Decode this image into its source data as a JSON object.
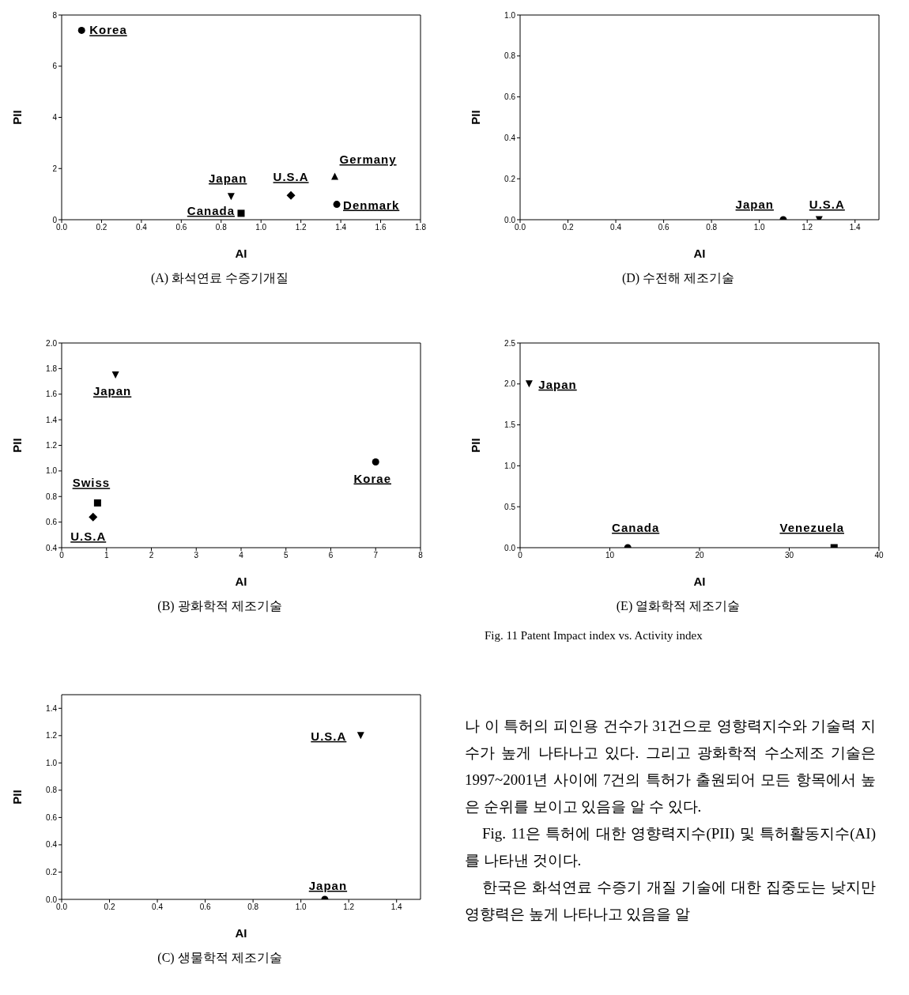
{
  "chart_data": [
    {
      "type": "scatter",
      "title": "(A) 화석연료 수증기개질",
      "xlabel": "AI",
      "ylabel": "PII",
      "xlim": [
        0,
        1.8
      ],
      "xticks": [
        {
          "value": 0,
          "label": "0.0"
        },
        {
          "value": 0.2,
          "label": "0.2"
        },
        {
          "value": 0.4,
          "label": "0.4"
        },
        {
          "value": 0.6,
          "label": "0.6"
        },
        {
          "value": 0.8,
          "label": "0.8"
        },
        {
          "value": 1,
          "label": "1.0"
        },
        {
          "value": 1.2,
          "label": "1.2"
        },
        {
          "value": 1.4,
          "label": "1.4"
        },
        {
          "value": 1.6,
          "label": "1.6"
        },
        {
          "value": 1.8,
          "label": "1.8"
        }
      ],
      "ylim": [
        0,
        8
      ],
      "yticks": [
        0,
        2,
        4,
        6,
        8
      ],
      "series": [
        {
          "name": "Korea",
          "color": "#000000",
          "marker": "circle",
          "x": [
            0.1
          ],
          "values": [
            7.4
          ]
        },
        {
          "name": "Japan",
          "color": "#000000",
          "marker": "triangle-down",
          "x": [
            0.85
          ],
          "values": [
            0.9
          ]
        },
        {
          "name": "Canada",
          "color": "#000000",
          "marker": "square",
          "x": [
            0.9
          ],
          "values": [
            0.25
          ]
        },
        {
          "name": "U.S.A",
          "color": "#000000",
          "marker": "diamond",
          "x": [
            1.15
          ],
          "values": [
            0.95
          ]
        },
        {
          "name": "Germany",
          "color": "#000000",
          "marker": "triangle",
          "x": [
            1.37
          ],
          "values": [
            1.7
          ]
        },
        {
          "name": "Denmark",
          "color": "#000000",
          "marker": "circle",
          "x": [
            1.38
          ],
          "values": [
            0.6
          ]
        }
      ]
    },
    {
      "type": "scatter",
      "title": "(D) 수전해 제조기술",
      "xlabel": "AI",
      "ylabel": "PII",
      "xlim": [
        0,
        1.5
      ],
      "xticks": [
        {
          "value": 0,
          "label": "0.0"
        },
        {
          "value": 0.2,
          "label": "0.2"
        },
        {
          "value": 0.4,
          "label": "0.4"
        },
        {
          "value": 0.6,
          "label": "0.6"
        },
        {
          "value": 0.8,
          "label": "0.8"
        },
        {
          "value": 1,
          "label": "1.0"
        },
        {
          "value": 1.2,
          "label": "1.2"
        },
        {
          "value": 1.4,
          "label": "1.4"
        }
      ],
      "ylim": [
        0,
        1
      ],
      "yticks": [
        {
          "value": 0,
          "label": "0.0"
        },
        {
          "value": 0.2,
          "label": "0.2"
        },
        {
          "value": 0.4,
          "label": "0.4"
        },
        {
          "value": 0.6,
          "label": "0.6"
        },
        {
          "value": 0.8,
          "label": "0.8"
        },
        {
          "value": 1,
          "label": "1.0"
        }
      ],
      "series": [
        {
          "name": "Japan",
          "color": "#000000",
          "marker": "circle",
          "x": [
            1.1
          ],
          "values": [
            0
          ]
        },
        {
          "name": "U.S.A",
          "color": "#000000",
          "marker": "triangle-down",
          "x": [
            1.25
          ],
          "values": [
            0
          ]
        }
      ]
    },
    {
      "type": "scatter",
      "title": "(B) 광화학적 제조기술",
      "xlabel": "AI",
      "ylabel": "PII",
      "xlim": [
        0,
        8
      ],
      "xticks": [
        0,
        1,
        2,
        3,
        4,
        5,
        6,
        7,
        8
      ],
      "ylim": [
        0.4,
        2
      ],
      "yticks": [
        {
          "value": 0.4,
          "label": "0.4"
        },
        {
          "value": 0.6,
          "label": "0.6"
        },
        {
          "value": 0.8,
          "label": "0.8"
        },
        {
          "value": 1,
          "label": "1.0"
        },
        {
          "value": 1.2,
          "label": "1.2"
        },
        {
          "value": 1.4,
          "label": "1.4"
        },
        {
          "value": 1.6,
          "label": "1.6"
        },
        {
          "value": 1.8,
          "label": "1.8"
        },
        {
          "value": 2,
          "label": "2.0"
        }
      ],
      "series": [
        {
          "name": "Japan",
          "color": "#000000",
          "marker": "triangle-down",
          "x": [
            1.2
          ],
          "values": [
            1.75
          ]
        },
        {
          "name": "Swiss",
          "color": "#000000",
          "marker": "square",
          "x": [
            0.8
          ],
          "values": [
            0.75
          ]
        },
        {
          "name": "U.S.A",
          "color": "#000000",
          "marker": "diamond",
          "x": [
            0.7
          ],
          "values": [
            0.64
          ]
        },
        {
          "name": "Korae",
          "color": "#000000",
          "marker": "circle",
          "x": [
            7
          ],
          "values": [
            1.07
          ]
        }
      ]
    },
    {
      "type": "scatter",
      "title": "(E) 열화학적 제조기술",
      "xlabel": "AI",
      "ylabel": "PII",
      "annotations": [
        "Fig. 11 Patent Impact index vs. Activity index"
      ],
      "xlim": [
        0,
        40
      ],
      "xticks": [
        0,
        10,
        20,
        30,
        40
      ],
      "ylim": [
        0,
        2.5
      ],
      "yticks": [
        {
          "value": 0,
          "label": "0.0"
        },
        {
          "value": 0.5,
          "label": "0.5"
        },
        {
          "value": 1,
          "label": "1.0"
        },
        {
          "value": 1.5,
          "label": "1.5"
        },
        {
          "value": 2,
          "label": "2.0"
        },
        {
          "value": 2.5,
          "label": "2.5"
        }
      ],
      "series": [
        {
          "name": "Japan",
          "color": "#000000",
          "marker": "triangle-down",
          "x": [
            1
          ],
          "values": [
            2
          ]
        },
        {
          "name": "Canada",
          "color": "#000000",
          "marker": "circle",
          "x": [
            12
          ],
          "values": [
            0
          ]
        },
        {
          "name": "Venezuela",
          "color": "#000000",
          "marker": "square",
          "x": [
            35
          ],
          "values": [
            0
          ]
        }
      ]
    },
    {
      "type": "scatter",
      "title": "(C) 생물학적 제조기술",
      "xlabel": "AI",
      "ylabel": "PII",
      "xlim": [
        0,
        1.5
      ],
      "xticks": [
        {
          "value": 0,
          "label": "0.0"
        },
        {
          "value": 0.2,
          "label": "0.2"
        },
        {
          "value": 0.4,
          "label": "0.4"
        },
        {
          "value": 0.6,
          "label": "0.6"
        },
        {
          "value": 0.8,
          "label": "0.8"
        },
        {
          "value": 1,
          "label": "1.0"
        },
        {
          "value": 1.2,
          "label": "1.2"
        },
        {
          "value": 1.4,
          "label": "1.4"
        }
      ],
      "ylim": [
        0,
        1.5
      ],
      "yticks": [
        {
          "value": 0,
          "label": "0.0"
        },
        {
          "value": 0.2,
          "label": "0.2"
        },
        {
          "value": 0.4,
          "label": "0.4"
        },
        {
          "value": 0.6,
          "label": "0.6"
        },
        {
          "value": 0.8,
          "label": "0.8"
        },
        {
          "value": 1,
          "label": "1.0"
        },
        {
          "value": 1.2,
          "label": "1.2"
        },
        {
          "value": 1.4,
          "label": "1.4"
        }
      ],
      "series": [
        {
          "name": "U.S.A",
          "color": "#000000",
          "marker": "triangle-down",
          "x": [
            1.25
          ],
          "values": [
            1.2
          ]
        },
        {
          "name": "Japan",
          "color": "#000000",
          "marker": "circle",
          "x": [
            1.1
          ],
          "values": [
            0
          ]
        }
      ]
    },
    {
      "type": "other",
      "annotations": [
        "나 이 특허의 피인용 건수가 31건으로 영향력지수와 기술력 지수가 높게 나타나고 있다. 그리고 광화학적 수소제조 기술은 1997~2001년 사이에 7건의 특허가 출원되어 모든 항목에서 높은 순위를 보이고 있음을 알 수 있다.",
        "Fig. 11은 특허에 대한 영향력지수(PII) 및 특허활동지수(AI)를 나타낸 것이다.",
        "한국은 화석연료 수증기 개질 기술에 대한 집중도는 낮지만 영향력은 높게 나타나고 있음을 알"
      ]
    }
  ]
}
